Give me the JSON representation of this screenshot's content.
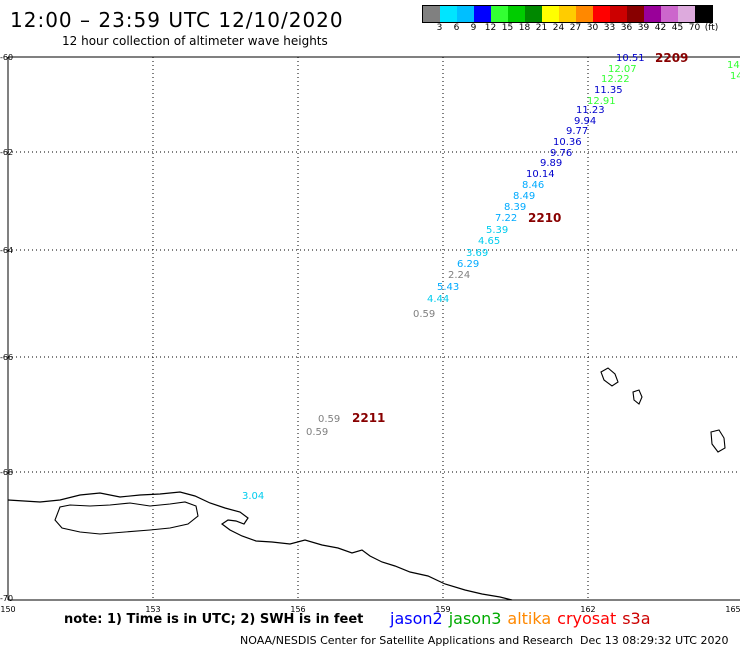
{
  "header": {
    "title": "12:00 – 23:59 UTC 12/10/2020",
    "subtitle": "12 hour collection of altimeter wave heights"
  },
  "legend": {
    "colors": [
      "#808080",
      "#00e5ff",
      "#00bfff",
      "#0000ff",
      "#33ff33",
      "#00cc00",
      "#008800",
      "#ffff00",
      "#ffcc00",
      "#ff8800",
      "#ff0000",
      "#cc0000",
      "#880000",
      "#990099",
      "#cc66cc",
      "#ddaadd",
      "#000000"
    ],
    "labels": [
      "3",
      "6",
      "9",
      "12",
      "15",
      "18",
      "21",
      "24",
      "27",
      "30",
      "33",
      "36",
      "39",
      "42",
      "45",
      "70",
      "(ft)"
    ]
  },
  "axes": {
    "lat_labels": [
      "-60",
      "-62",
      "-64",
      "-66",
      "-68",
      "-70"
    ],
    "lon_labels": [
      "150",
      "153",
      "156",
      "159",
      "162",
      "165"
    ]
  },
  "map_data": {
    "points": [
      {
        "text": "10.51",
        "color": "#0000cc"
      },
      {
        "text": "12.07",
        "color": "#33ff33"
      },
      {
        "text": "12.22",
        "color": "#33ff33"
      },
      {
        "text": "11.35",
        "color": "#0000cc"
      },
      {
        "text": "12.91",
        "color": "#33ff33"
      },
      {
        "text": "11.23",
        "color": "#0000cc"
      },
      {
        "text": "9.94",
        "color": "#0000cc"
      },
      {
        "text": "9.77",
        "color": "#0000cc"
      },
      {
        "text": "10.36",
        "color": "#0000cc"
      },
      {
        "text": "9.76",
        "color": "#0000cc"
      },
      {
        "text": "9.89",
        "color": "#0000cc"
      },
      {
        "text": "10.14",
        "color": "#0000cc"
      },
      {
        "text": "8.46",
        "color": "#00aaff"
      },
      {
        "text": "8.49",
        "color": "#00aaff"
      },
      {
        "text": "8.39",
        "color": "#00aaff"
      },
      {
        "text": "7.22",
        "color": "#00aaff"
      },
      {
        "text": "5.39",
        "color": "#00ccee"
      },
      {
        "text": "4.65",
        "color": "#00ccee"
      },
      {
        "text": "3.69",
        "color": "#00ccee"
      },
      {
        "text": "6.29",
        "color": "#00aaff"
      },
      {
        "text": "2.24",
        "color": "#808080"
      },
      {
        "text": "5.43",
        "color": "#00aaff"
      },
      {
        "text": "4.44",
        "color": "#00ccee"
      },
      {
        "text": "0.59",
        "color": "#808080"
      },
      {
        "text": "0.59",
        "color": "#808080"
      },
      {
        "text": "0.59",
        "color": "#808080"
      },
      {
        "text": "3.04",
        "color": "#00ccee"
      },
      {
        "text": "14",
        "color": "#33ff33"
      },
      {
        "text": "14",
        "color": "#33ff33"
      }
    ],
    "times": [
      {
        "text": "2209",
        "color": "#880000"
      },
      {
        "text": "2210",
        "color": "#880000"
      },
      {
        "text": "2211",
        "color": "#880000"
      }
    ]
  },
  "footer": {
    "note": "note: 1) Time is in UTC; 2) SWH is in feet",
    "satellites": [
      {
        "name": "jason2",
        "color": "#0000ff"
      },
      {
        "name": "jason3",
        "color": "#00aa00"
      },
      {
        "name": "altika",
        "color": "#ff8800"
      },
      {
        "name": "cryosat",
        "color": "#ff0000"
      },
      {
        "name": "s3a",
        "color": "#cc0000"
      }
    ],
    "credit": "NOAA/NESDIS Center for Satellite Applications and Research",
    "timestamp": "Dec 13 08:29:32 UTC 2020"
  }
}
